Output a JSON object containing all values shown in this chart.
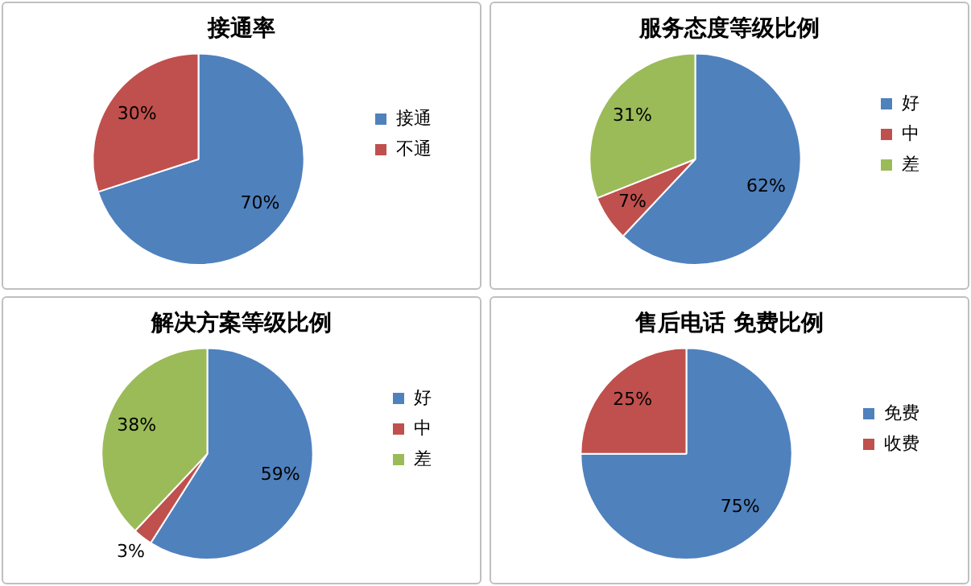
{
  "chart_data": [
    {
      "type": "pie",
      "title": "接通率",
      "categories": [
        "接通",
        "不通"
      ],
      "values": [
        70,
        30
      ],
      "colors": [
        "#4f81bd",
        "#c0504d"
      ],
      "value_labels": [
        "70%",
        "30%"
      ],
      "legend": "right"
    },
    {
      "type": "pie",
      "title": "服务态度等级比例",
      "categories": [
        "好",
        "中",
        "差"
      ],
      "values": [
        62,
        7,
        31
      ],
      "colors": [
        "#4f81bd",
        "#c0504d",
        "#9bbb59"
      ],
      "value_labels": [
        "62%",
        "7%",
        "31%"
      ],
      "legend": "right"
    },
    {
      "type": "pie",
      "title": "解决方案等级比例",
      "categories": [
        "好",
        "中",
        "差"
      ],
      "values": [
        59,
        3,
        38
      ],
      "colors": [
        "#4f81bd",
        "#c0504d",
        "#9bbb59"
      ],
      "value_labels": [
        "59%",
        "3%",
        "38%"
      ],
      "legend": "right"
    },
    {
      "type": "pie",
      "title": "售后电话 免费比例",
      "categories": [
        "免费",
        "收费"
      ],
      "values": [
        75,
        25
      ],
      "colors": [
        "#4f81bd",
        "#c0504d"
      ],
      "value_labels": [
        "75%",
        "25%"
      ],
      "legend": "right"
    }
  ]
}
